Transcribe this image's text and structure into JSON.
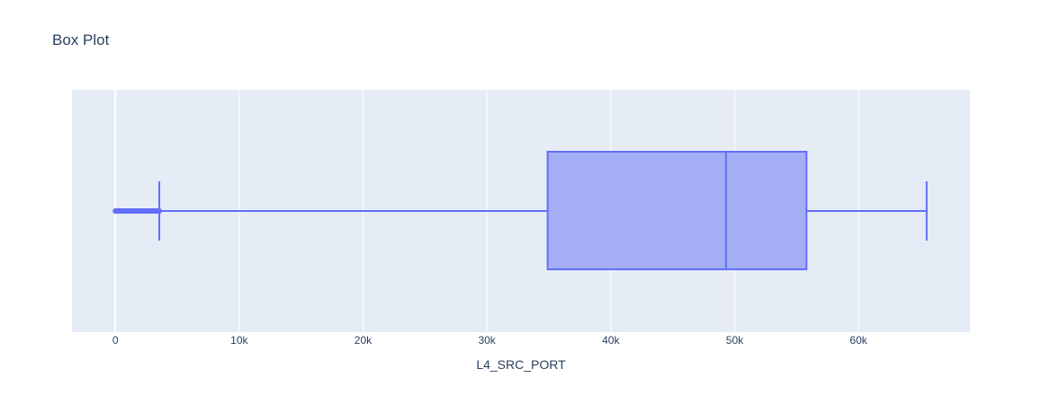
{
  "chart_data": {
    "type": "box",
    "title": "Box Plot",
    "xlabel": "L4_SRC_PORT",
    "ylabel": "",
    "orientation": "horizontal",
    "xlim": [
      -3500,
      69000
    ],
    "x_ticks": [
      0,
      10000,
      20000,
      30000,
      40000,
      50000,
      60000
    ],
    "x_tick_labels": [
      "0",
      "10k",
      "20k",
      "30k",
      "40k",
      "50k",
      "60k"
    ],
    "grid": true,
    "box": {
      "lower_fence": 0,
      "q1": 34900,
      "median": 49300,
      "q3": 55800,
      "upper_fence": 65500,
      "low_whisker_cap": 3550
    },
    "outliers_range": [
      0,
      3550
    ],
    "colors": {
      "plot_bg": "#e5ecf6",
      "box_fill": "#a3aef5",
      "box_line": "#636efa",
      "grid": "#ffffff",
      "text": "#2a3f5f"
    }
  }
}
